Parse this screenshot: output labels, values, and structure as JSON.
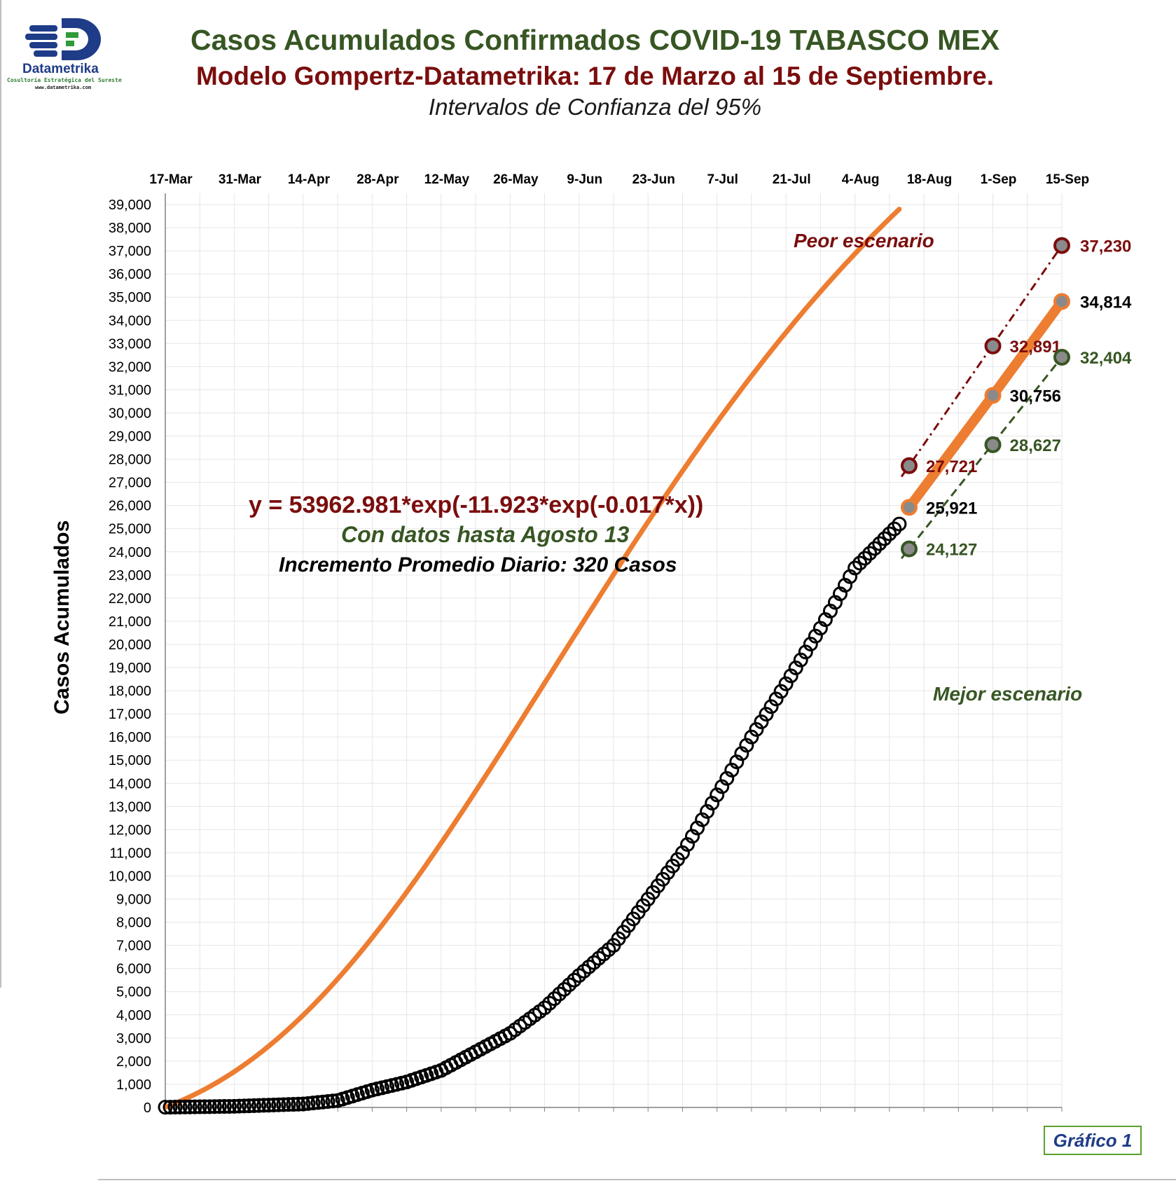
{
  "header": {
    "title": "Casos Acumulados Confirmados COVID-19 TABASCO MEX",
    "subtitle": "Modelo Gompertz-Datametrika: 17 de Marzo al 15 de Septiembre.",
    "subtitle2": "Intervalos de Confianza del 95%"
  },
  "logo": {
    "name": "Datametrika",
    "tagline": "Cosultoría Estratégica del Sureste",
    "url": "www.datametrika.com"
  },
  "annotations": {
    "equation": "y = 53962.981*exp(-11.923*exp(-0.017*x))",
    "data_until": "Con datos hasta Agosto 13",
    "daily_increase": "Incremento Promedio Diario: 320 Casos",
    "worst": "Peor escenario",
    "best": "Mejor escenario"
  },
  "badge": "Gráfico 1",
  "colors": {
    "observed_marker": "#000000",
    "model_line": "#ed7d31",
    "worst": "#7b0d0d",
    "best": "#375623",
    "grid": "#e6e6e6"
  },
  "chart_data": {
    "type": "line",
    "ylabel": "Casos Acumulados",
    "x_ticks": [
      "17-Mar",
      "31-Mar",
      "14-Apr",
      "28-Apr",
      "12-May",
      "26-May",
      "9-Jun",
      "23-Jun",
      "7-Jul",
      "21-Jul",
      "4-Aug",
      "18-Aug",
      "1-Sep",
      "15-Sep"
    ],
    "x_range": [
      "2020-03-17",
      "2020-09-15"
    ],
    "ylim": [
      0,
      39000
    ],
    "ytick_step": 1000,
    "grid": true,
    "model": {
      "name": "Modelo Gompertz",
      "a": 53962.981,
      "b": -11.923,
      "c": -0.017
    },
    "observed_anchor_points": [
      {
        "x": "2020-03-17",
        "y": 10
      },
      {
        "x": "2020-03-31",
        "y": 50
      },
      {
        "x": "2020-04-14",
        "y": 150
      },
      {
        "x": "2020-04-21",
        "y": 300
      },
      {
        "x": "2020-04-28",
        "y": 750
      },
      {
        "x": "2020-05-05",
        "y": 1100
      },
      {
        "x": "2020-05-12",
        "y": 1600
      },
      {
        "x": "2020-05-19",
        "y": 2400
      },
      {
        "x": "2020-05-26",
        "y": 3200
      },
      {
        "x": "2020-06-02",
        "y": 4300
      },
      {
        "x": "2020-06-09",
        "y": 5700
      },
      {
        "x": "2020-06-16",
        "y": 7000
      },
      {
        "x": "2020-06-23",
        "y": 9000
      },
      {
        "x": "2020-06-30",
        "y": 11000
      },
      {
        "x": "2020-07-07",
        "y": 13500
      },
      {
        "x": "2020-07-14",
        "y": 16000
      },
      {
        "x": "2020-07-21",
        "y": 18300
      },
      {
        "x": "2020-07-28",
        "y": 20700
      },
      {
        "x": "2020-08-04",
        "y": 23300
      },
      {
        "x": "2020-08-13",
        "y": 25200
      }
    ],
    "forecast": {
      "x": [
        "2020-08-15",
        "2020-09-01",
        "2020-09-15"
      ],
      "central": [
        25921,
        30756,
        34814
      ],
      "worst": [
        27721,
        32891,
        37230
      ],
      "best": [
        24127,
        28627,
        32404
      ]
    }
  }
}
